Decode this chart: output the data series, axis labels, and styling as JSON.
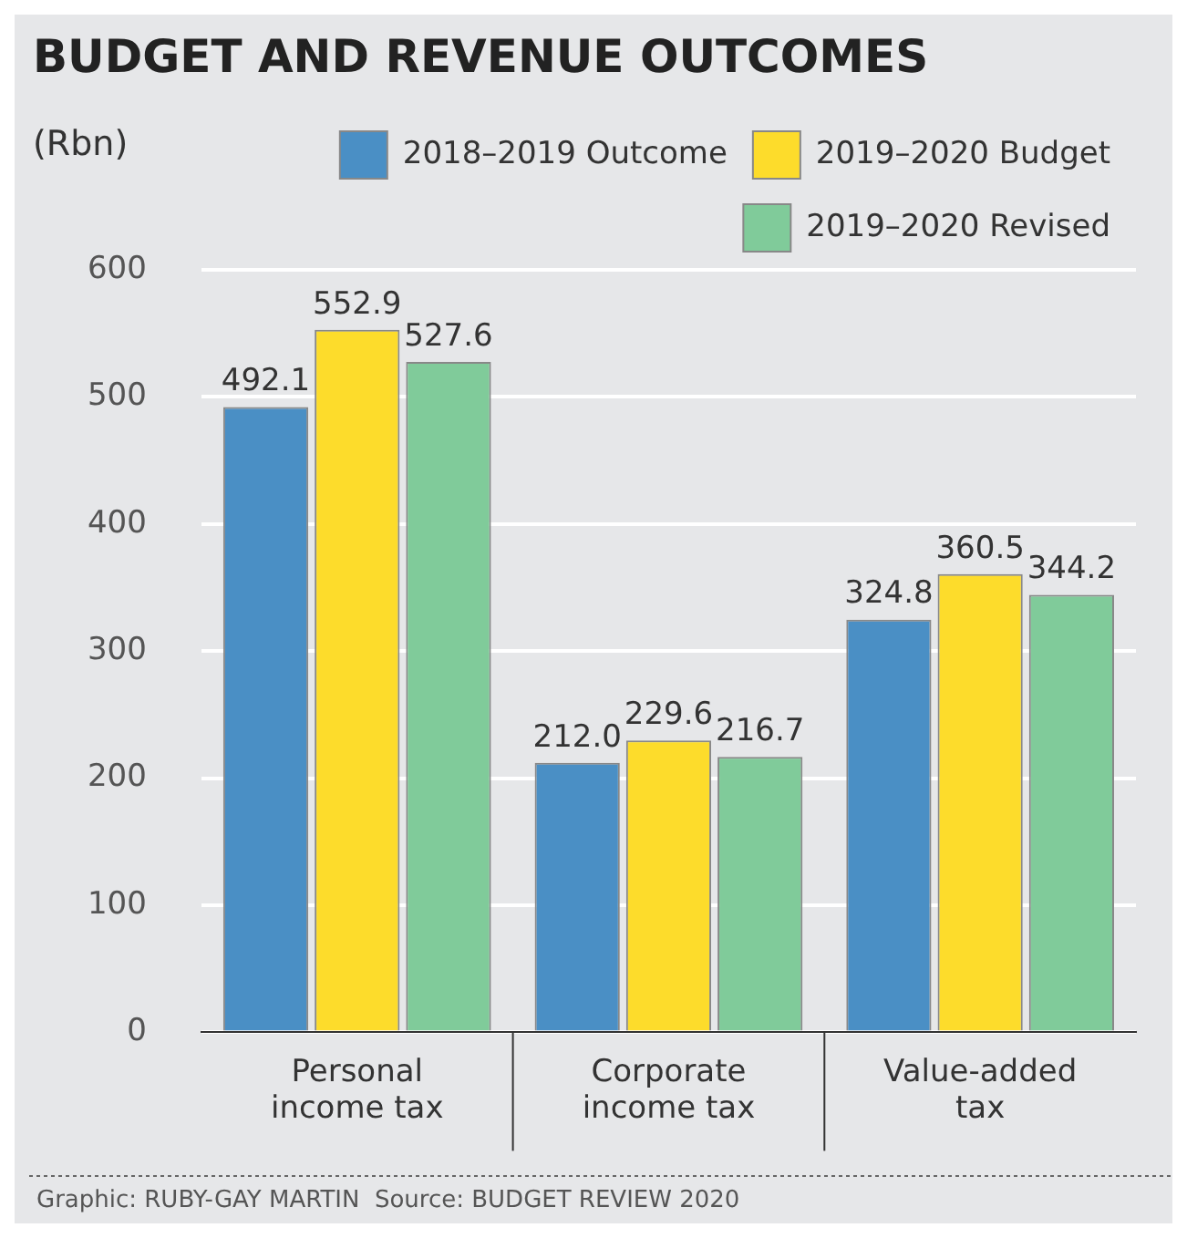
{
  "chart_data": {
    "type": "bar",
    "title": "BUDGET AND REVENUE OUTCOMES",
    "ylabel": "(Rbn)",
    "categories": [
      "Personal income tax",
      "Corporate income tax",
      "Value-added tax"
    ],
    "series": [
      {
        "name": "2018–2019 Outcome",
        "color": "#4a8fc5",
        "values": [
          492.1,
          212.0,
          324.8
        ],
        "value_labels": [
          "492.1",
          "212.0",
          "324.8"
        ]
      },
      {
        "name": "2019–2020 Budget",
        "color": "#fddc2b",
        "values": [
          552.9,
          229.6,
          360.5
        ],
        "value_labels": [
          "552.9",
          "229.6",
          "360.5"
        ]
      },
      {
        "name": "2019–2020 Revised",
        "color": "#80cb9a",
        "values": [
          527.6,
          216.7,
          344.2
        ],
        "value_labels": [
          "527.6",
          "216.7",
          "344.2"
        ]
      }
    ],
    "ylim": [
      0,
      600
    ],
    "yticks": [
      0,
      100,
      200,
      300,
      400,
      500,
      600
    ],
    "grid": "y",
    "legend": "top",
    "annotations": [
      "Graphic: RUBY-GAY MARTIN  Source: BUDGET REVIEW 2020"
    ]
  }
}
